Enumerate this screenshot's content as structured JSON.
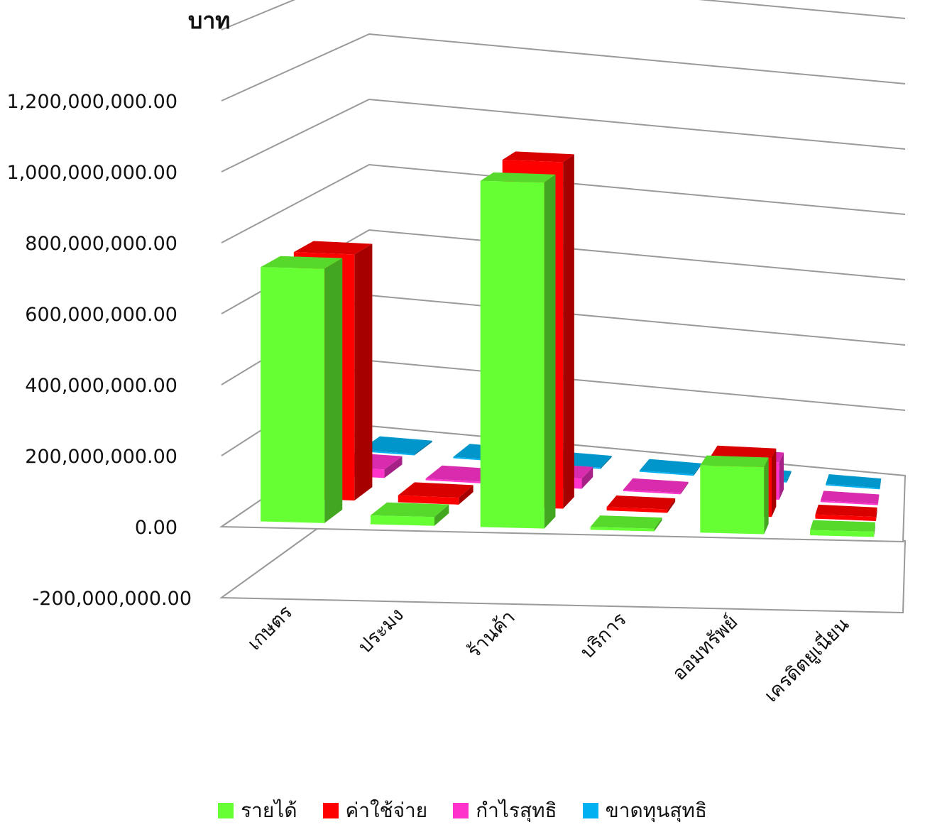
{
  "chart_data": {
    "type": "bar",
    "subtype": "3d-clustered-column",
    "unit_label": "บาท",
    "categories": [
      "เกษตร",
      "ประมง",
      "ร้านค้า",
      "บริการ",
      "ออมทรัพย์",
      "เครดิตยูเนี่ยน"
    ],
    "series": [
      {
        "name": "รายได้",
        "color": "#66ff33",
        "values": [
          720000000,
          25000000,
          980000000,
          8000000,
          190000000,
          15000000
        ]
      },
      {
        "name": "ค่าใช้จ่าย",
        "color": "#ff0000",
        "values": [
          710000000,
          20000000,
          1000000000,
          10000000,
          170000000,
          12000000
        ]
      },
      {
        "name": "กำไรสุทธิ",
        "color": "#ff33cc",
        "values": [
          25000000,
          5000000,
          30000000,
          3000000,
          110000000,
          3000000
        ]
      },
      {
        "name": "ขาดทุนสุทธิ",
        "color": "#00b0f0",
        "values": [
          0,
          0,
          0,
          0,
          0,
          0
        ]
      }
    ],
    "y_ticks": [
      "1,200,000,000.00",
      "1,000,000,000.00",
      "800,000,000.00",
      "600,000,000.00",
      "400,000,000.00",
      "200,000,000.00",
      "0.00",
      "-200,000,000.00"
    ],
    "ylim": [
      -200000000,
      1200000000
    ],
    "grid": true,
    "legend_position": "bottom"
  }
}
